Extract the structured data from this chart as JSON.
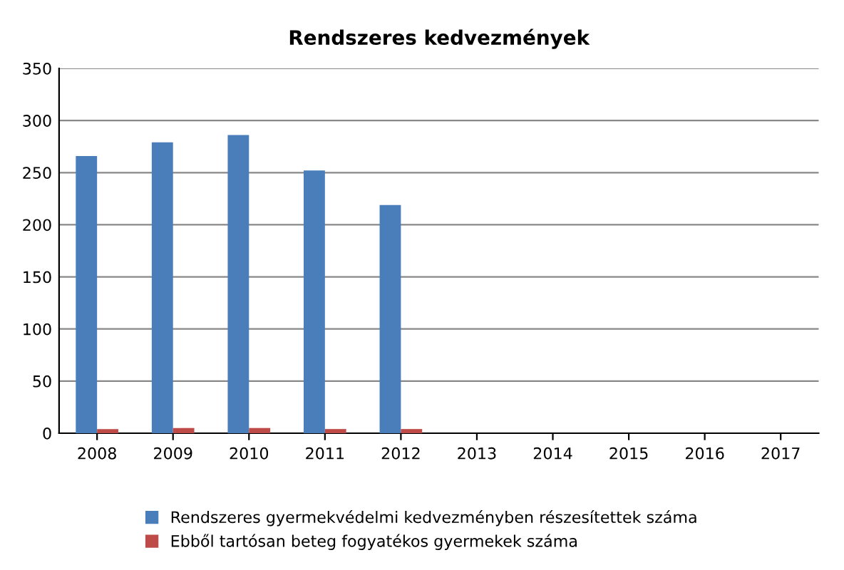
{
  "chart_data": {
    "type": "bar",
    "title": "Rendszeres kedvezmények",
    "categories": [
      "2008",
      "2009",
      "2010",
      "2011",
      "2012",
      "2013",
      "2014",
      "2015",
      "2016",
      "2017"
    ],
    "series": [
      {
        "name": "Rendszeres gyermekvédelmi kedvezményben részesítettek száma",
        "color": "#4a7ebb",
        "values": [
          266,
          279,
          286,
          252,
          219,
          null,
          null,
          null,
          null,
          null
        ]
      },
      {
        "name": "Ebből tartósan beteg fogyatékos gyermekek száma",
        "color": "#be4b48",
        "values": [
          4,
          5,
          5,
          4,
          4,
          null,
          null,
          null,
          null,
          null
        ]
      }
    ],
    "ylim": [
      0,
      350
    ],
    "yticks": [
      0,
      50,
      100,
      150,
      200,
      250,
      300,
      350
    ],
    "grid": "y",
    "legend": "bottom"
  }
}
